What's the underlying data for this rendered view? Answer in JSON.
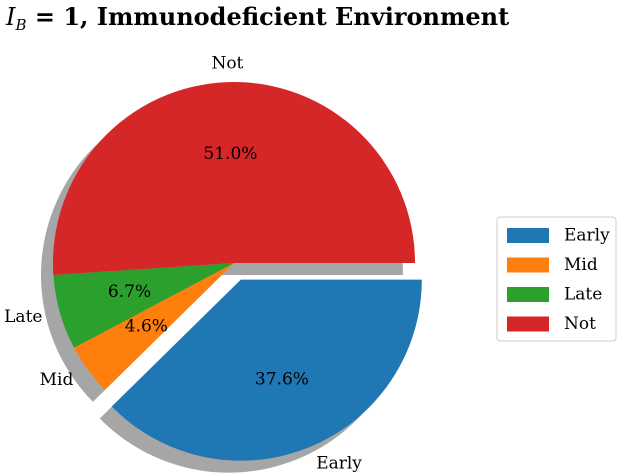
{
  "chart_data": {
    "type": "pie",
    "title": {
      "symbol": "I",
      "subscript": "B",
      "rest": " = 1, Immunodeficient Environment"
    },
    "slices": [
      {
        "label": "Early",
        "value": 37.6,
        "pct_label": "37.6%",
        "color": "#1f77b4",
        "exploded": true
      },
      {
        "label": "Mid",
        "value": 4.6,
        "pct_label": "4.6%",
        "color": "#ff7f0e",
        "exploded": false
      },
      {
        "label": "Late",
        "value": 6.7,
        "pct_label": "6.7%",
        "color": "#2ca02c",
        "exploded": false
      },
      {
        "label": "Not",
        "value": 51.0,
        "pct_label": "51.0%",
        "color": "#d62728",
        "exploded": false
      }
    ],
    "shadow": true,
    "start_angle_deg": 0,
    "direction": "clockwise",
    "legend": {
      "placement": "right",
      "entries": [
        "Early",
        "Mid",
        "Late",
        "Not"
      ]
    }
  }
}
